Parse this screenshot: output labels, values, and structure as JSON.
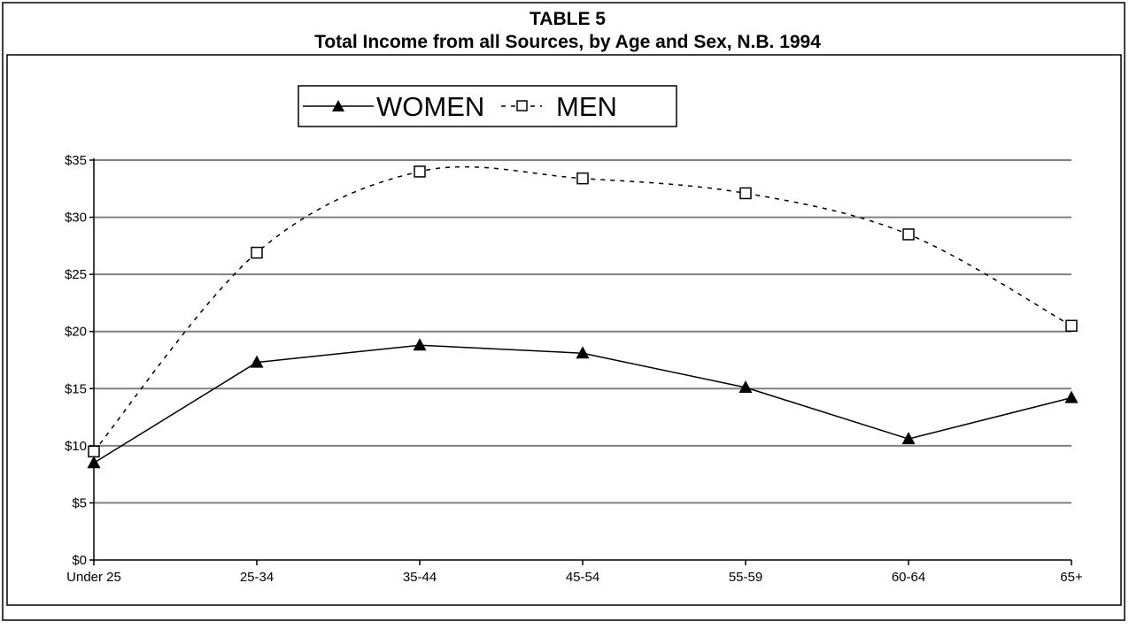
{
  "chart_data": {
    "type": "line",
    "title": "TABLE 5",
    "subtitle": "Total Income from all Sources, by Age and Sex, N.B. 1994",
    "categories": [
      "Under 25",
      "25-34",
      "35-44",
      "45-54",
      "55-59",
      "60-64",
      "65+"
    ],
    "yticks": [
      "$0",
      "$5",
      "$10",
      "$15",
      "$20",
      "$25",
      "$30",
      "$35"
    ],
    "ylim": [
      0,
      35
    ],
    "grid": true,
    "legend_position": "top-center",
    "series": [
      {
        "name": "WOMEN",
        "values": [
          8.5,
          17.3,
          18.8,
          18.1,
          15.1,
          10.6,
          14.2
        ],
        "marker": "filled-triangle",
        "line_style": "solid",
        "color": "#000000"
      },
      {
        "name": "MEN",
        "values": [
          9.5,
          26.9,
          34.0,
          33.4,
          32.1,
          28.5,
          20.5
        ],
        "marker": "open-square",
        "line_style": "dashed",
        "color": "#000000"
      }
    ]
  }
}
